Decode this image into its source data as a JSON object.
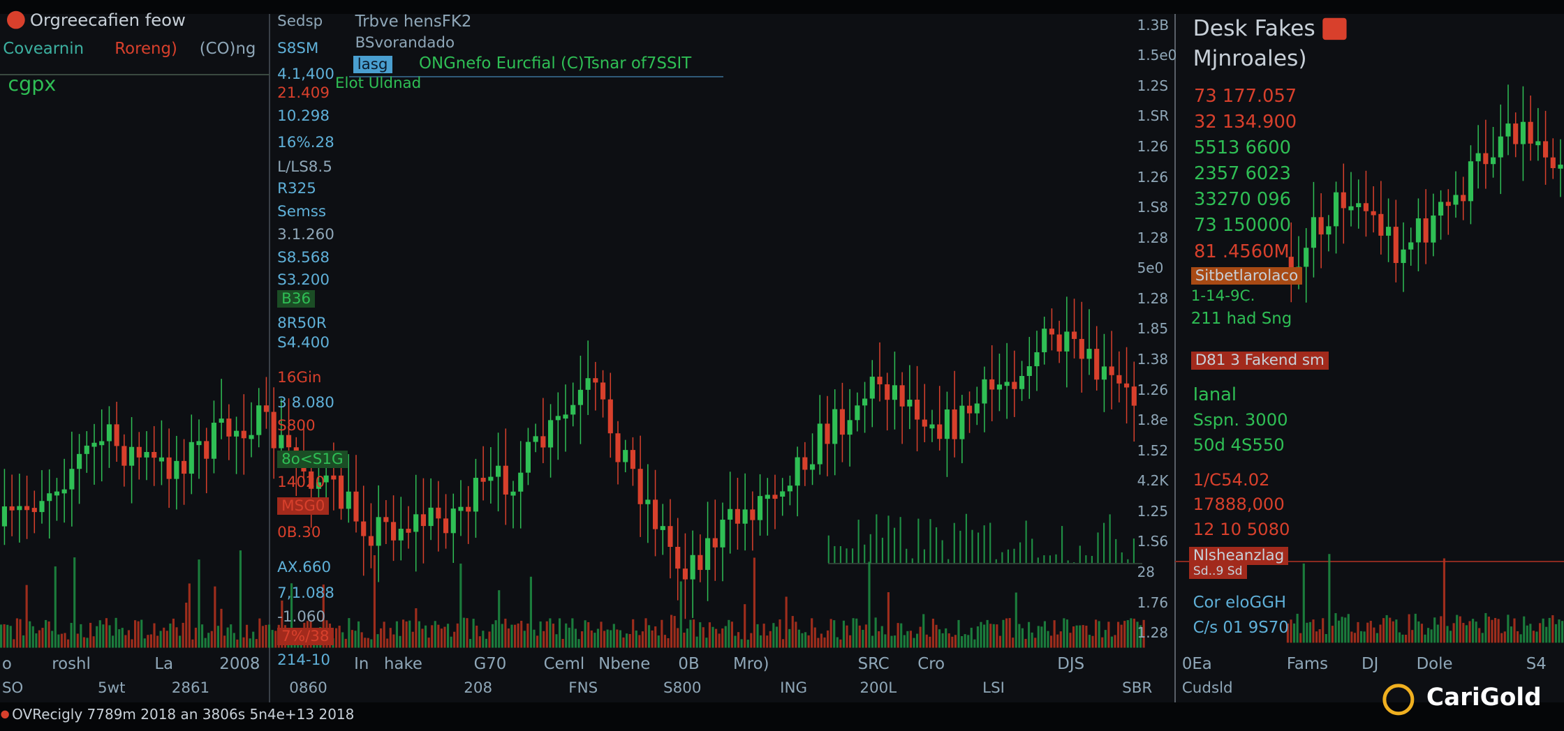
{
  "left_panel": {
    "title": "Orgreecafien feow",
    "subtitle": [
      "Covearnin",
      "Roreng)",
      "(CO)ng"
    ],
    "ticker": "cgpx"
  },
  "left_axis_labels": [
    "Sedsp",
    "S8SM",
    "4.1,400",
    "21.409",
    "10.298",
    "16%.28",
    "L/LS8.5",
    "R325",
    "Semss",
    "3.1.260",
    "S8.568",
    "S3.200",
    "B36",
    "8R50R",
    "S4.400",
    "16Gin",
    "3 8.080",
    "S800",
    "8o<S1G",
    "14020",
    "MSG0",
    "0B.30",
    "AX.660",
    "7,1.088",
    "-1.060",
    "7%/38",
    "214-10"
  ],
  "info_box": {
    "line1": "Trbve hensFK2",
    "line2": "BSvorandado",
    "tag": "lasg",
    "headline": "ONGnefo Eurcfial (C)Tsnar of7SSIT",
    "note": "Elot Uldnad"
  },
  "right_axis_labels": [
    "1.3B",
    "1.5e0",
    "1.2S",
    "1.SR",
    "1.26",
    "1.26",
    "1.S8",
    "1.28",
    "5e0",
    "1.28",
    "1.85",
    "1.38",
    "1.26",
    "1.8e",
    "1.52",
    "4.2K",
    "1.25",
    "1.S6",
    "28",
    "1.76",
    "1.28"
  ],
  "desk_panel": {
    "title": "Desk Fakes",
    "subtitle": "Mjnroales)",
    "quotes": [
      "73 177.057",
      "32 134.900",
      "5513 6600",
      "2357 6023",
      "33270 096",
      "73 150000",
      "81 .4560M"
    ],
    "tag1": "Sitbetlarolaco",
    "line1": "1-14-9C.",
    "line2": "211 had Sng",
    "tag2": "D81 3 Fakend sm",
    "label": "Ianal",
    "vals1": [
      "Sspn. 3000",
      "50d 4S550"
    ],
    "vals2": [
      "1/C54.02",
      "17888,000",
      "12 10 5080"
    ],
    "tag3": "Nlsheanzlag",
    "tag3b": "Sd..9 Sd",
    "foot1": "Cor eloGGH",
    "foot2": "C/s 01 9S70"
  },
  "time_axis_row1": [
    "o",
    "roshl",
    "La",
    "2008",
    "In",
    "hake",
    "G70",
    "Ceml",
    "Nbene",
    "0B",
    "Mro)",
    "SRC",
    "Cro",
    "DJS",
    "0Ea",
    "Fams",
    "DJ",
    "Dole",
    "S4"
  ],
  "time_axis_row2": [
    "SO",
    "5wt",
    "2861",
    "0860",
    "208",
    "FNS",
    "S800",
    "ING",
    "200L",
    "LSI",
    "SBR",
    "Cudsld"
  ],
  "status_bar": "OVRecigly 7789m 2018 an 3806s 5n4e+13 2018",
  "logo": "CariGold"
}
